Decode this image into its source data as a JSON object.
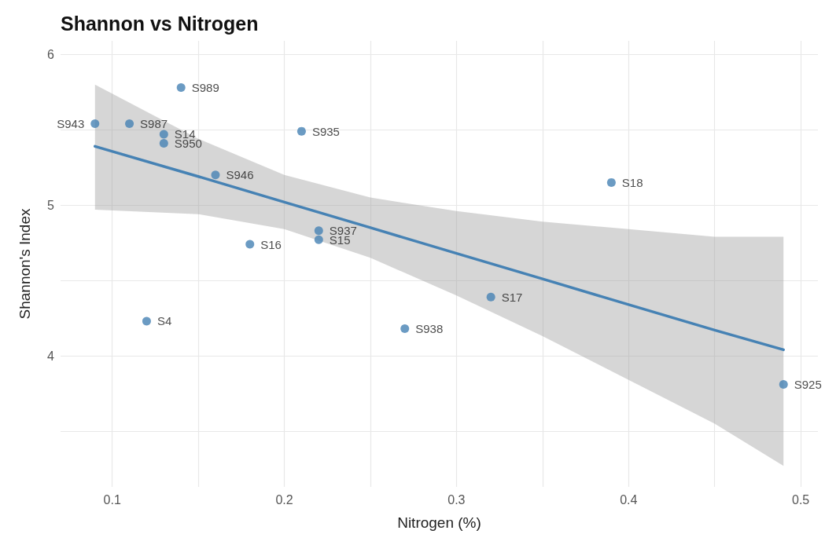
{
  "chart_data": {
    "type": "scatter",
    "title": "Shannon vs Nitrogen",
    "xlabel": "Nitrogen (%)",
    "ylabel": "Shannon's Index",
    "xlim": [
      0.07,
      0.51
    ],
    "xticks": [
      0.1,
      {
        "value": 0.15,
        "label": null
      },
      0.2,
      {
        "value": 0.25,
        "label": null
      },
      0.3,
      {
        "value": 0.35,
        "label": null
      },
      0.4,
      {
        "value": 0.45,
        "label": null
      },
      0.5
    ],
    "ylim": [
      3.13,
      6.09
    ],
    "yticks": [
      {
        "value": 3.5,
        "label": null
      },
      4,
      {
        "value": 4.5,
        "label": null
      },
      5,
      {
        "value": 5.5,
        "label": null
      },
      6
    ],
    "grid": true,
    "marker": "circle",
    "series": [
      {
        "type": "scatter",
        "color": "#4682b4",
        "x": [
          0.14,
          0.11,
          0.09,
          0.13,
          0.13,
          0.21,
          0.16,
          0.39,
          0.22,
          0.22,
          0.18,
          0.32,
          0.27,
          0.12,
          0.49
        ],
        "values": [
          5.78,
          5.54,
          5.54,
          5.47,
          5.41,
          5.49,
          5.2,
          5.15,
          4.83,
          4.77,
          4.74,
          4.39,
          4.18,
          4.23,
          3.81
        ],
        "value_labels": [
          "S989",
          "S987",
          "S943",
          "S14",
          "S950",
          "S935",
          "S946",
          "S18",
          "S937",
          "S15",
          "S16",
          "S17",
          "S938",
          "S4",
          "S925"
        ]
      },
      {
        "type": "line",
        "color": "#4682b4",
        "marker": "none",
        "x": [
          0.09,
          0.15,
          0.2,
          0.25,
          0.3,
          0.35,
          0.4,
          0.45,
          0.49
        ],
        "values": [
          5.39,
          5.19,
          5.02,
          4.85,
          4.68,
          4.51,
          4.34,
          4.17,
          4.04
        ],
        "lower": [
          4.97,
          4.94,
          4.84,
          4.65,
          4.4,
          4.13,
          3.84,
          3.55,
          3.27
        ],
        "upper": [
          5.8,
          5.44,
          5.2,
          5.05,
          4.96,
          4.89,
          4.84,
          4.79,
          4.79
        ]
      }
    ]
  }
}
